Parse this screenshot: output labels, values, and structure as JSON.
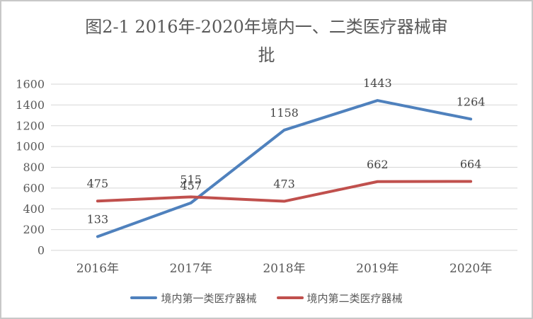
{
  "chart": {
    "title_lines": [
      "图2-1 2016年-2020年境内一、二类医疗器械审",
      "批"
    ]
  },
  "chart_data": {
    "type": "line",
    "title": "图2-1 2016年-2020年境内一、二类医疗器械审批",
    "categories": [
      "2016年",
      "2017年",
      "2018年",
      "2019年",
      "2020年"
    ],
    "series": [
      {
        "name": "境内第一类医疗器械",
        "color": "#4F81BD",
        "values": [
          133,
          457,
          1158,
          1443,
          1264
        ]
      },
      {
        "name": "境内第二类医疗器械",
        "color": "#C0504D",
        "values": [
          475,
          515,
          473,
          662,
          664
        ]
      }
    ],
    "ylim": [
      0,
      1600
    ],
    "ytick_step": 200,
    "ytick_labels": [
      "0",
      "200",
      "400",
      "600",
      "800",
      "1000",
      "1200",
      "1400",
      "1600"
    ],
    "xlabel": "",
    "ylabel": "",
    "grid": true,
    "legend_position": "bottom",
    "colors": {
      "grid": "#d6d6d6",
      "axis_text": "#595959",
      "data_label": "#454545",
      "frame_border": "#c8c8c8"
    }
  }
}
